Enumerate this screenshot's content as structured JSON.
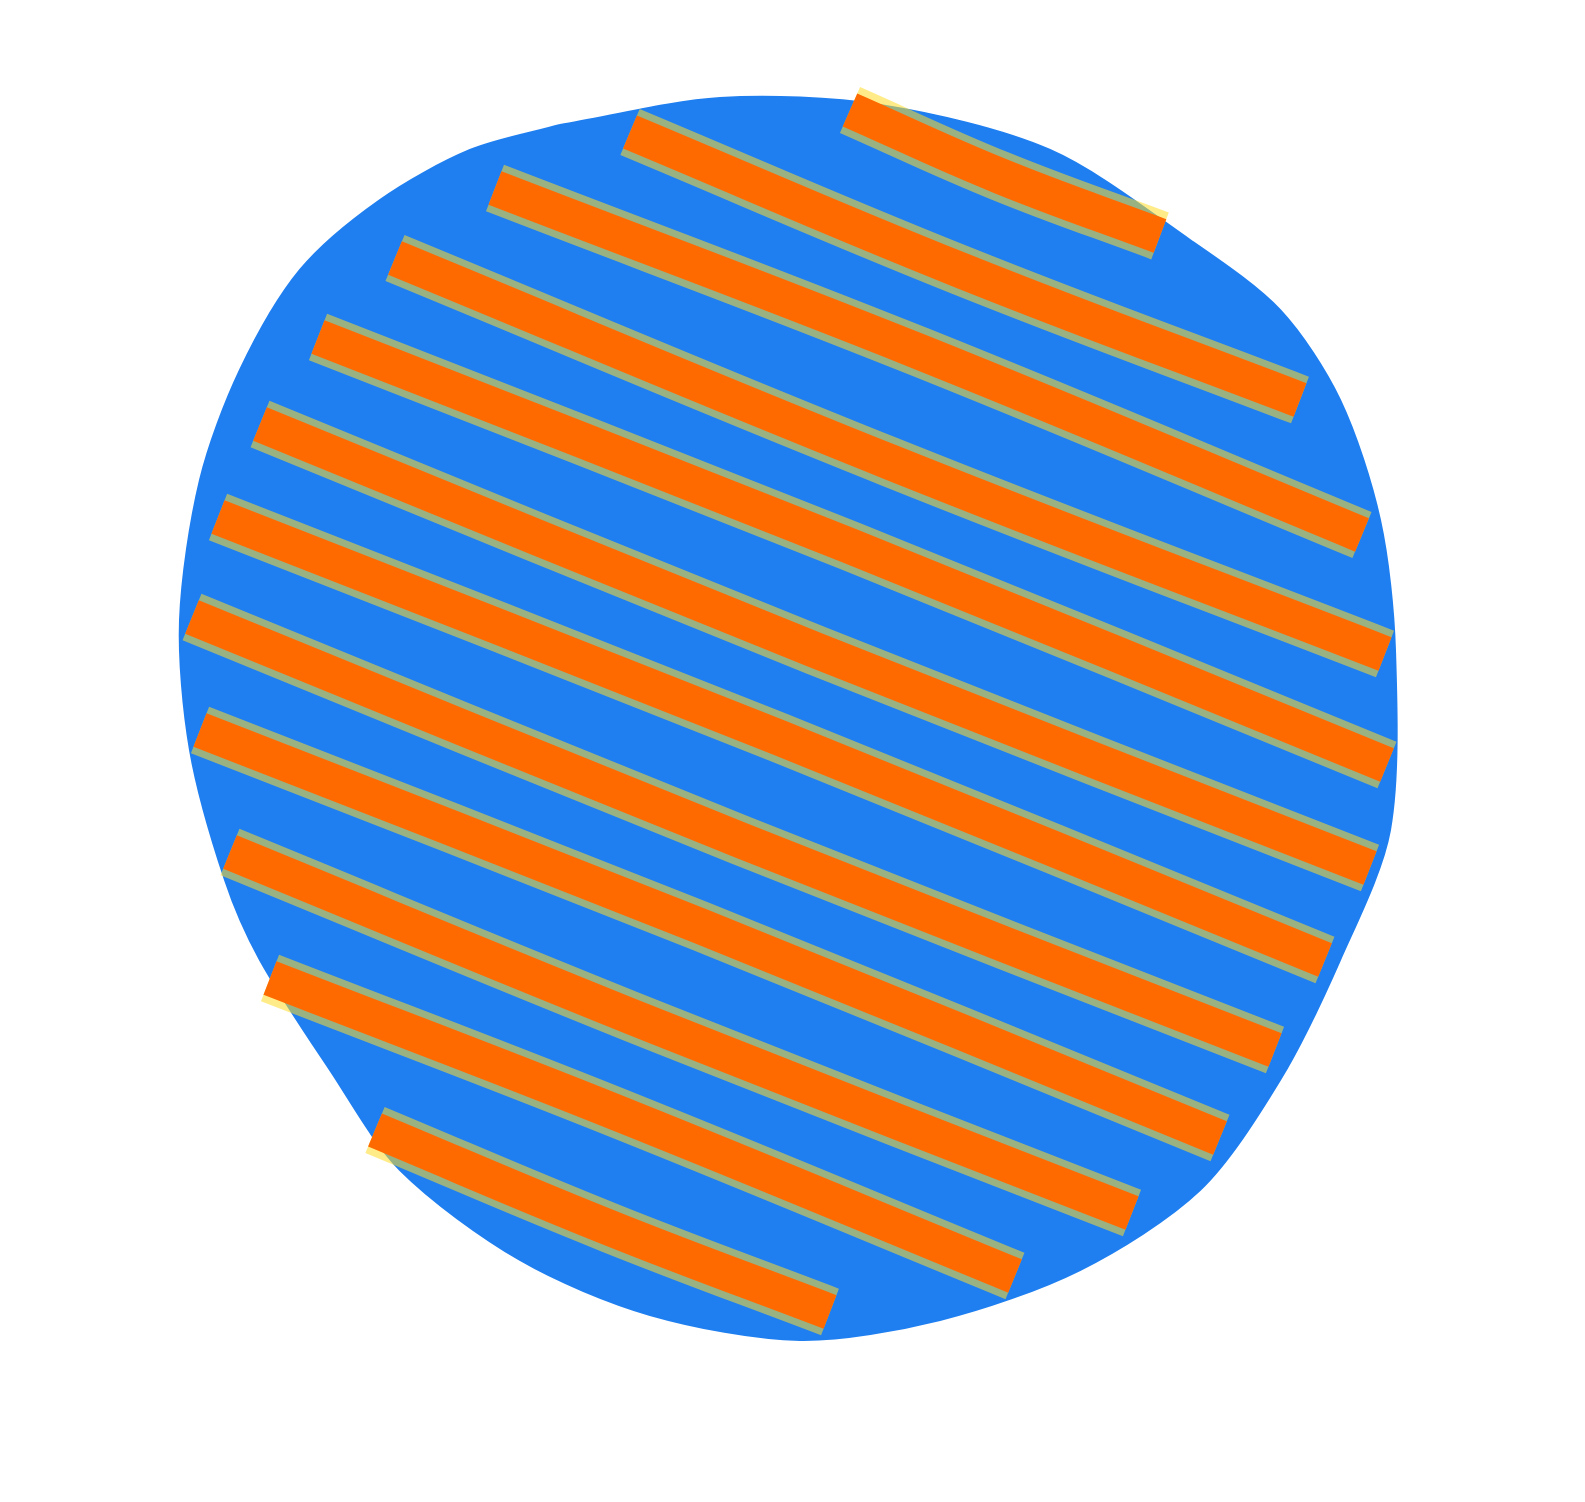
{
  "chart_data": {
    "type": "line",
    "xlim": [
      0,
      1585
    ],
    "ylim": [
      1502,
      0
    ],
    "tick_labels": false,
    "grid": false,
    "domain": {
      "color": "#1f7ff0",
      "x": [
        560,
        720,
        880,
        1050,
        1190,
        1280,
        1340,
        1380,
        1395,
        1390,
        1340,
        1280,
        1200,
        1080,
        940,
        800,
        650,
        520,
        400,
        330,
        260,
        225,
        190,
        180,
        200,
        240,
        300,
        380,
        470
      ],
      "y": [
        125,
        98,
        105,
        150,
        240,
        310,
        400,
        520,
        650,
        830,
        960,
        1080,
        1190,
        1270,
        1320,
        1340,
        1315,
        1260,
        1170,
        1070,
        960,
        880,
        750,
        620,
        480,
        370,
        270,
        200,
        150
      ]
    },
    "series": [
      {
        "color": "#ff6a00",
        "x": [
          850,
          1000,
          1160
        ],
        "y": [
          110,
          176,
          236
        ]
      },
      {
        "color": "#ff6a00",
        "x": [
          630,
          960,
          1300
        ],
        "y": [
          132,
          270,
          400
        ]
      },
      {
        "color": "#ff6a00",
        "x": [
          495,
          920,
          1362
        ],
        "y": [
          188,
          352,
          535
        ]
      },
      {
        "color": "#ff6a00",
        "x": [
          395,
          890,
          1385
        ],
        "y": [
          258,
          462,
          654
        ]
      },
      {
        "color": "#ff6a00",
        "x": [
          318,
          850,
          1387
        ],
        "y": [
          337,
          546,
          765
        ]
      },
      {
        "color": "#ff6a00",
        "x": [
          260,
          815,
          1370
        ],
        "y": [
          424,
          650,
          868
        ]
      },
      {
        "color": "#ff6a00",
        "x": [
          218,
          780,
          1325
        ],
        "y": [
          517,
          738,
          960
        ]
      },
      {
        "color": "#ff6a00",
        "x": [
          192,
          740,
          1275
        ],
        "y": [
          617,
          840,
          1050
        ]
      },
      {
        "color": "#ff6a00",
        "x": [
          200,
          700,
          1220
        ],
        "y": [
          730,
          926,
          1138
        ]
      },
      {
        "color": "#ff6a00",
        "x": [
          230,
          660,
          1132
        ],
        "y": [
          852,
          1028,
          1213
        ]
      },
      {
        "color": "#ff6a00",
        "x": [
          270,
          620,
          1015
        ],
        "y": [
          978,
          1114,
          1276
        ]
      },
      {
        "color": "#ff6a00",
        "x": [
          375,
          610,
          830
        ],
        "y": [
          1130,
          1228,
          1312
        ]
      }
    ]
  }
}
